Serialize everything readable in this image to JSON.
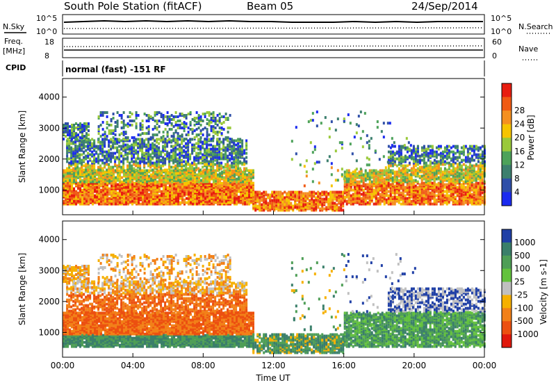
{
  "header": {
    "title": "South Pole Station (fitACF)",
    "beam": "Beam 05",
    "date": "24/Sep/2014"
  },
  "panels": {
    "nsky": {
      "label": "N.Sky",
      "tick_high": "10^5",
      "tick_low": "10^0",
      "right_label": "N.Search",
      "right_tick_high": "10^5",
      "right_tick_low": "10^0"
    },
    "freq": {
      "label_top": "Freq.",
      "label_unit": "[MHz]",
      "tick_high": "18",
      "tick_low": "8",
      "right_label": "Nave",
      "right_tick_high": "60",
      "right_tick_low": "0"
    },
    "cpid": {
      "label": "CPID",
      "text": "normal (fast) -151 RF"
    }
  },
  "chart_data": [
    {
      "type": "heatmap",
      "title": "",
      "ylabel": "Slant Range [km]",
      "xlabel": "",
      "x_ticks": [
        "00:00",
        "04:00",
        "08:00",
        "12:00",
        "16:00",
        "20:00",
        "00:00"
      ],
      "y_ticks": [
        1000,
        2000,
        3000,
        4000
      ],
      "ylim": [
        200,
        4600
      ],
      "colorbar": {
        "label": "Power [dB]",
        "ticks": [
          4,
          8,
          12,
          16,
          20,
          24,
          28
        ],
        "colors": [
          "#1b2bf0",
          "#2f4fa8",
          "#3c7f6e",
          "#4da25a",
          "#9ac93a",
          "#f6c400",
          "#f59020",
          "#f05a14",
          "#e81d10"
        ]
      }
    },
    {
      "type": "heatmap",
      "title": "",
      "ylabel": "Slant Range [km]",
      "xlabel": "Time UT",
      "x_ticks": [
        "00:00",
        "04:00",
        "08:00",
        "12:00",
        "16:00",
        "20:00",
        "00:00"
      ],
      "y_ticks": [
        1000,
        2000,
        3000,
        4000
      ],
      "ylim": [
        200,
        4600
      ],
      "colorbar": {
        "label": "Velocity [m s-1]",
        "ticks": [
          "1000",
          "500",
          "100",
          "25",
          "-25",
          "-100",
          "-500",
          "-1000"
        ],
        "colors": [
          "#1f3fa6",
          "#3a7f6a",
          "#4e9e56",
          "#63c23c",
          "#c0c0c0",
          "#f6b000",
          "#f28018",
          "#ec5010",
          "#e0180c"
        ]
      }
    }
  ]
}
